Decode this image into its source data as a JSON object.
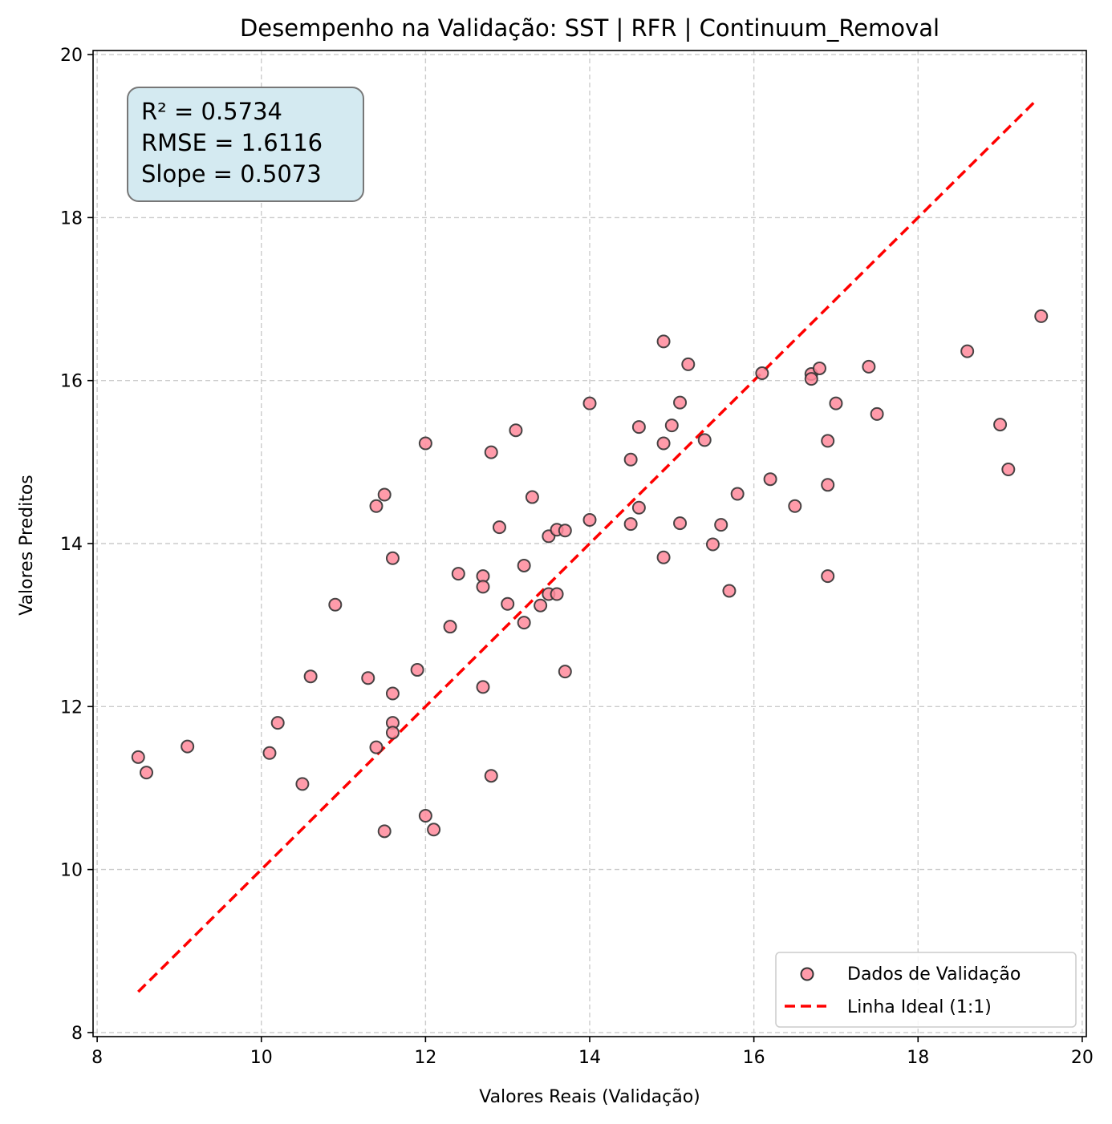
{
  "chart_data": {
    "type": "scatter",
    "title": "Desempenho na Validação: SST | RFR | Continuum_Removal",
    "xlabel": "Valores Reais (Validação)",
    "ylabel": "Valores Preditos",
    "xlim": [
      7.95,
      20.05
    ],
    "ylim": [
      7.95,
      20.05
    ],
    "xticks": [
      8,
      10,
      12,
      14,
      16,
      18,
      20
    ],
    "yticks": [
      8,
      10,
      12,
      14,
      16,
      18,
      20
    ],
    "grid": true,
    "legend_position": "lower-right",
    "stats_box": {
      "lines": [
        "R² = 0.5734",
        "RMSE = 1.6116",
        "Slope = 0.5073"
      ],
      "position": "top-left"
    },
    "series": [
      {
        "name": "Dados de Validação",
        "kind": "scatter",
        "color": "#ff8a9b",
        "edge_color": "#333333",
        "points": [
          [
            8.5,
            11.38
          ],
          [
            8.6,
            11.19
          ],
          [
            9.1,
            11.51
          ],
          [
            10.1,
            11.43
          ],
          [
            10.2,
            11.8
          ],
          [
            10.5,
            11.05
          ],
          [
            10.6,
            12.37
          ],
          [
            10.9,
            13.25
          ],
          [
            11.3,
            12.35
          ],
          [
            11.4,
            14.46
          ],
          [
            11.4,
            11.5
          ],
          [
            11.5,
            14.6
          ],
          [
            11.5,
            10.47
          ],
          [
            11.6,
            13.82
          ],
          [
            11.6,
            12.16
          ],
          [
            11.6,
            11.8
          ],
          [
            11.6,
            11.68
          ],
          [
            11.9,
            12.45
          ],
          [
            12.0,
            15.23
          ],
          [
            12.0,
            10.66
          ],
          [
            12.1,
            10.49
          ],
          [
            12.3,
            12.98
          ],
          [
            12.4,
            13.63
          ],
          [
            12.7,
            13.6
          ],
          [
            12.7,
            13.47
          ],
          [
            12.7,
            12.24
          ],
          [
            12.8,
            15.12
          ],
          [
            12.8,
            11.15
          ],
          [
            12.9,
            14.2
          ],
          [
            13.0,
            13.26
          ],
          [
            13.1,
            15.39
          ],
          [
            13.2,
            13.73
          ],
          [
            13.2,
            13.03
          ],
          [
            13.3,
            14.57
          ],
          [
            13.4,
            13.24
          ],
          [
            13.5,
            14.09
          ],
          [
            13.5,
            13.38
          ],
          [
            13.6,
            14.17
          ],
          [
            13.6,
            13.38
          ],
          [
            13.7,
            14.16
          ],
          [
            13.7,
            12.43
          ],
          [
            14.0,
            15.72
          ],
          [
            14.0,
            14.29
          ],
          [
            14.5,
            15.03
          ],
          [
            14.5,
            14.24
          ],
          [
            14.6,
            15.43
          ],
          [
            14.6,
            14.44
          ],
          [
            14.9,
            16.48
          ],
          [
            14.9,
            15.23
          ],
          [
            14.9,
            13.83
          ],
          [
            15.0,
            15.45
          ],
          [
            15.1,
            15.73
          ],
          [
            15.1,
            14.25
          ],
          [
            15.2,
            16.2
          ],
          [
            15.4,
            15.27
          ],
          [
            15.5,
            13.99
          ],
          [
            15.6,
            14.23
          ],
          [
            15.7,
            13.42
          ],
          [
            15.8,
            14.61
          ],
          [
            16.1,
            16.09
          ],
          [
            16.2,
            14.79
          ],
          [
            16.5,
            14.46
          ],
          [
            16.7,
            16.08
          ],
          [
            16.7,
            16.02
          ],
          [
            16.8,
            16.15
          ],
          [
            16.9,
            15.26
          ],
          [
            16.9,
            14.72
          ],
          [
            16.9,
            13.6
          ],
          [
            17.0,
            15.72
          ],
          [
            17.4,
            16.17
          ],
          [
            17.5,
            15.59
          ],
          [
            18.6,
            16.36
          ],
          [
            19.0,
            15.46
          ],
          [
            19.1,
            14.91
          ],
          [
            19.5,
            16.79
          ]
        ]
      },
      {
        "name": "Linha Ideal (1:1)",
        "kind": "line",
        "style": "dashed",
        "color": "#ff0000",
        "points": [
          [
            8.5,
            8.5
          ],
          [
            19.45,
            19.45
          ]
        ]
      }
    ]
  },
  "colors": {
    "grid": "#cccccc",
    "stats_box_fill": "#d4eaf1",
    "stats_box_edge": "#777777"
  }
}
